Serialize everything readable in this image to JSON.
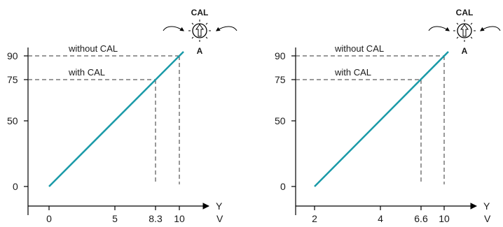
{
  "panels": [
    {
      "x_unit": "V",
      "y_unit": "Y",
      "y_ticks": [
        "0",
        "50",
        "75",
        "90"
      ],
      "y_values": [
        0,
        50,
        75,
        90
      ],
      "x_ticks": [
        "0",
        "5",
        "8.3",
        "10"
      ],
      "x_values": [
        0,
        5,
        8.3,
        10
      ],
      "x_min": 0,
      "x_max": 10,
      "line_label_without": "without CAL",
      "line_label_with": "with CAL",
      "knob_top": "CAL",
      "knob_bottom": "A"
    },
    {
      "x_unit": "V",
      "y_unit": "Y",
      "y_ticks": [
        "0",
        "50",
        "75",
        "90"
      ],
      "y_values": [
        0,
        50,
        75,
        90
      ],
      "x_ticks": [
        "2",
        "4",
        "6.6",
        "10"
      ],
      "x_values": [
        2,
        4,
        6.6,
        10
      ],
      "x_min": 2,
      "x_max": 10,
      "line_label_without": "without CAL",
      "line_label_with": "with CAL",
      "knob_top": "CAL",
      "knob_bottom": "A"
    }
  ],
  "colors": {
    "line": "#1a9aa8",
    "axis": "#000000",
    "dash": "#333333"
  }
}
